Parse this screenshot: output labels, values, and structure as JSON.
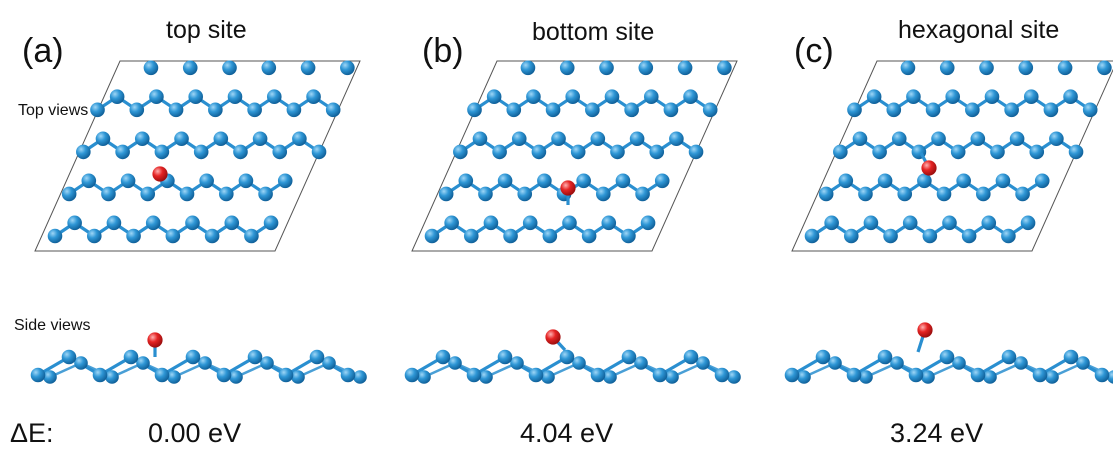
{
  "row_labels": {
    "top": "Top views",
    "side": "Side views"
  },
  "energy_label": "ΔE:",
  "colors": {
    "atom": "#2a8fd0",
    "bond": "#2a8fd0",
    "adatom": "#e21b1b",
    "cell": "#555555"
  },
  "panels": [
    {
      "label": "(a)",
      "title": "top site",
      "energy": "0.00 eV"
    },
    {
      "label": "(b)",
      "title": "bottom site",
      "energy": "4.04 eV"
    },
    {
      "label": "(c)",
      "title": "hexagonal site",
      "energy": "3.24 eV"
    }
  ]
}
